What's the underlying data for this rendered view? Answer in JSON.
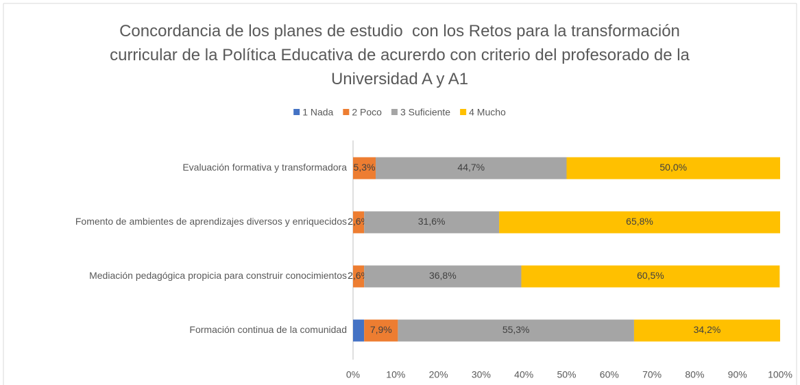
{
  "chart_data": {
    "type": "stacked_barh",
    "title": "Concordancia de los planes de estudio  con los Retos para la transformación curricular de la Política Educativa de acurerdo con criterio del profesorado de la Universidad A y A1",
    "categories": [
      "Evaluación formativa y transformadora",
      "Fomento de ambientes de aprendizajes diversos y enriquecidos",
      "Mediación pedagógica propicia para construir conocimientos",
      "Formación continua de la comunidad"
    ],
    "series": [
      {
        "name": "1 Nada",
        "color": "#4472c4",
        "values": [
          0,
          0,
          0,
          2.6
        ],
        "value_labels": [
          null,
          null,
          null,
          null
        ]
      },
      {
        "name": "2 Poco",
        "color": "#ed7d31",
        "values": [
          5.3,
          2.6,
          2.6,
          7.9
        ],
        "value_labels": [
          "5,3%",
          "2,6%",
          "2,6%",
          "7,9%"
        ]
      },
      {
        "name": "3 Suficiente",
        "color": "#a5a5a5",
        "values": [
          44.7,
          31.6,
          36.8,
          55.3
        ],
        "value_labels": [
          "44,7%",
          "31,6%",
          "36,8%",
          "55,3%"
        ]
      },
      {
        "name": "4 Mucho",
        "color": "#ffc000",
        "values": [
          50.0,
          65.8,
          60.5,
          34.2
        ],
        "value_labels": [
          "50,0%",
          "65,8%",
          "60,5%",
          "34,2%"
        ]
      }
    ],
    "xlim": [
      0,
      100
    ],
    "xticks": [
      {
        "value": 0,
        "label": "0%"
      },
      {
        "value": 10,
        "label": "10%"
      },
      {
        "value": 20,
        "label": "20%"
      },
      {
        "value": 30,
        "label": "30%"
      },
      {
        "value": 40,
        "label": "40%"
      },
      {
        "value": 50,
        "label": "50%"
      },
      {
        "value": 60,
        "label": "60%"
      },
      {
        "value": 70,
        "label": "70%"
      },
      {
        "value": 80,
        "label": "80%"
      },
      {
        "value": 90,
        "label": "90%"
      },
      {
        "value": 100,
        "label": "100%"
      }
    ],
    "legend": "top"
  }
}
